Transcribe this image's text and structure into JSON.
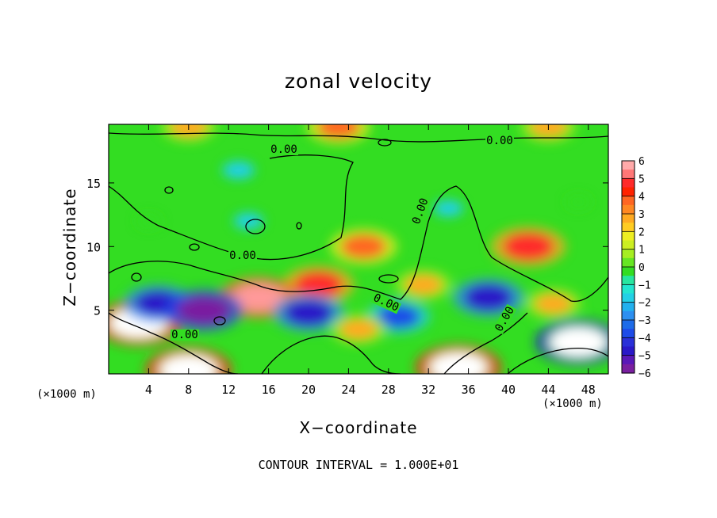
{
  "chart_data": {
    "type": "heatmap",
    "title": "zonal velocity",
    "xlabel": "X−coordinate",
    "ylabel": "Z−coordinate",
    "x_unit": "(×1000 m)",
    "xlim": [
      0,
      50
    ],
    "ylim": [
      0,
      19.6
    ],
    "x_ticks": [
      4,
      8,
      12,
      16,
      20,
      24,
      28,
      32,
      36,
      40,
      44,
      48
    ],
    "y_ticks": [
      5,
      10,
      15
    ],
    "colorbar": {
      "min": -6,
      "max": 6,
      "labels": [
        "6",
        "5",
        "4",
        "3",
        "2",
        "1",
        "0",
        "−1",
        "−2",
        "−3",
        "−4",
        "−5",
        "−6"
      ]
    },
    "contour_labels": [
      "0.00",
      "0.00",
      "0.00",
      "0.00",
      "0.00",
      "0.00",
      "0.00"
    ],
    "contour_interval_text": "CONTOUR INTERVAL = 1.000E+01",
    "features": [
      {
        "x": 42,
        "z": 10,
        "value": 5.5
      },
      {
        "x": 38,
        "z": 6,
        "value": -5
      },
      {
        "x": 25.5,
        "z": 10,
        "value": 4.5
      },
      {
        "x": 21,
        "z": 7,
        "value": 5
      },
      {
        "x": 15,
        "z": 6,
        "value": 6
      },
      {
        "x": 3,
        "z": 4,
        "value": 7
      },
      {
        "x": 8,
        "z": 0.3,
        "value": 7
      },
      {
        "x": 35,
        "z": 0.5,
        "value": 7
      },
      {
        "x": 47,
        "z": 2.5,
        "value": -7
      },
      {
        "x": 5,
        "z": 5.5,
        "value": -5
      },
      {
        "x": 9.5,
        "z": 5,
        "value": -6
      },
      {
        "x": 20,
        "z": 4.8,
        "value": -5
      },
      {
        "x": 29,
        "z": 4.5,
        "value": -4
      },
      {
        "x": 25,
        "z": 3.5,
        "value": 3
      },
      {
        "x": 44.5,
        "z": 5.5,
        "value": 3
      },
      {
        "x": 31.5,
        "z": 7,
        "value": 3
      },
      {
        "x": 23,
        "z": 19.4,
        "value": 4
      },
      {
        "x": 8,
        "z": 19.4,
        "value": 3
      },
      {
        "x": 44,
        "z": 19.4,
        "value": 3
      },
      {
        "x": 14,
        "z": 12,
        "value": -1.5
      },
      {
        "x": 34,
        "z": 13,
        "value": -1.5
      },
      {
        "x": 13,
        "z": 16,
        "value": -2
      },
      {
        "x": 4,
        "z": 12,
        "value": 0.5
      },
      {
        "x": 47,
        "z": 13.5,
        "value": 0.5
      }
    ]
  }
}
